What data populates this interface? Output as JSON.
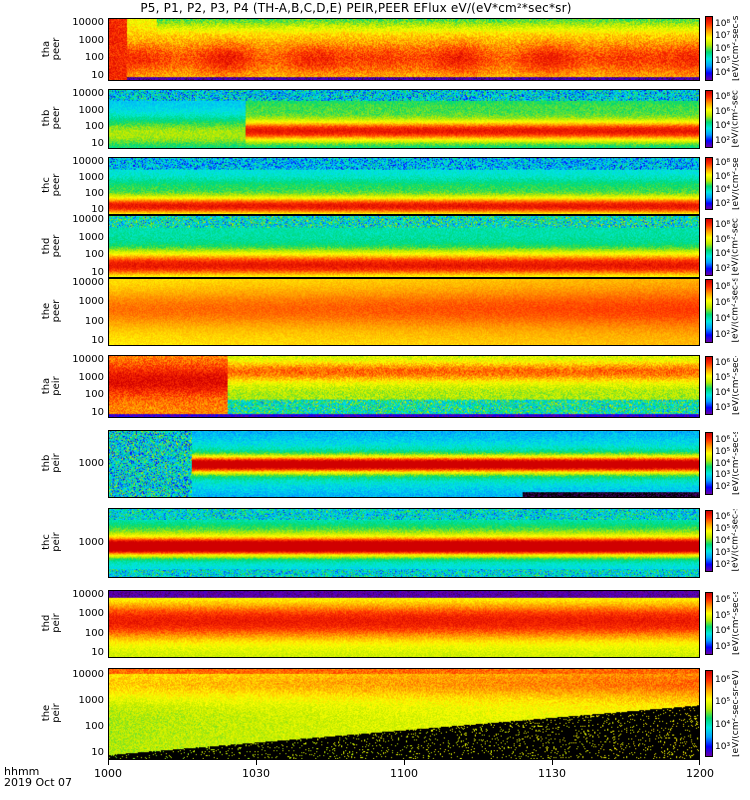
{
  "title": "P5, P1, P2, P3, P4 (TH-A,B,C,D,E) PEIR,PEER EFlux eV/(eV*cm²*sec*sr)",
  "x_axis": {
    "label": "hhmm",
    "date": "2019 Oct 07",
    "ticks": [
      "1000",
      "1030",
      "1100",
      "1130",
      "1200"
    ]
  },
  "colorbar_label": "[eV/(cm²-sec-sr-eV)] (4)",
  "colors": {
    "spectrum": [
      "#000000",
      "#6a00a8",
      "#0000ff",
      "#00a0ff",
      "#00e8e0",
      "#00d870",
      "#b8e800",
      "#ffff00",
      "#ffa000",
      "#ff3000",
      "#d00000"
    ]
  },
  "chart_data": [
    {
      "type": "heatmap",
      "ylabel": "tha\npeer",
      "yticks": [
        "10",
        "100",
        "1000",
        "10000"
      ],
      "colorbar_ticks": [
        "10⁴",
        "10⁵",
        "10⁶",
        "10⁷",
        "10⁸"
      ],
      "x_range": [
        "1000",
        "1200"
      ],
      "y_scale": "log",
      "colorscale": "log"
    },
    {
      "type": "heatmap",
      "ylabel": "thb\npeer",
      "yticks": [
        "10",
        "100",
        "1000",
        "10000"
      ],
      "colorbar_ticks": [
        "10²",
        "10⁴",
        "10⁶",
        "10⁸"
      ],
      "x_range": [
        "1000",
        "1200"
      ],
      "y_scale": "log",
      "colorscale": "log"
    },
    {
      "type": "heatmap",
      "ylabel": "thc\npeer",
      "yticks": [
        "10",
        "100",
        "1000",
        "10000"
      ],
      "colorbar_ticks": [
        "10²",
        "10⁴",
        "10⁶",
        "10⁸"
      ],
      "x_range": [
        "1000",
        "1200"
      ],
      "y_scale": "log",
      "colorscale": "log"
    },
    {
      "type": "heatmap",
      "ylabel": "thd\npeer",
      "yticks": [
        "10",
        "100",
        "1000",
        "10000"
      ],
      "colorbar_ticks": [
        "10²",
        "10⁴",
        "10⁶",
        "10⁸"
      ],
      "x_range": [
        "1000",
        "1200"
      ],
      "y_scale": "log",
      "colorscale": "log"
    },
    {
      "type": "heatmap",
      "ylabel": "the\npeer",
      "yticks": [
        "10",
        "100",
        "1000",
        "10000"
      ],
      "colorbar_ticks": [
        "10²",
        "10⁴",
        "10⁶",
        "10⁸"
      ],
      "x_range": [
        "1000",
        "1200"
      ],
      "y_scale": "log",
      "colorscale": "log"
    },
    {
      "type": "heatmap",
      "ylabel": "tha\npeir",
      "yticks": [
        "10",
        "100",
        "1000",
        "10000"
      ],
      "colorbar_ticks": [
        "10³",
        "10⁴",
        "10⁵",
        "10⁶"
      ],
      "x_range": [
        "1000",
        "1200"
      ],
      "y_scale": "log",
      "colorscale": "log"
    },
    {
      "type": "heatmap",
      "ylabel": "thb\npeir",
      "yticks": [
        "1000"
      ],
      "colorbar_ticks": [
        "10²",
        "10³",
        "10⁴",
        "10⁵",
        "10⁶"
      ],
      "x_range": [
        "1000",
        "1200"
      ],
      "y_scale": "log",
      "colorscale": "log"
    },
    {
      "type": "heatmap",
      "ylabel": "thc\npeir",
      "yticks": [
        "1000"
      ],
      "colorbar_ticks": [
        "10²",
        "10³",
        "10⁴",
        "10⁵",
        "10⁶"
      ],
      "x_range": [
        "1000",
        "1200"
      ],
      "y_scale": "log",
      "colorscale": "log"
    },
    {
      "type": "heatmap",
      "ylabel": "thd\npeir",
      "yticks": [
        "10",
        "100",
        "1000",
        "10000"
      ],
      "colorbar_ticks": [
        "10³",
        "10⁴",
        "10⁵",
        "10⁶"
      ],
      "x_range": [
        "1000",
        "1200"
      ],
      "y_scale": "log",
      "colorscale": "log"
    },
    {
      "type": "heatmap",
      "ylabel": "the\npeir",
      "yticks": [
        "10",
        "100",
        "1000",
        "10000"
      ],
      "colorbar_ticks": [
        "10³",
        "10⁴",
        "10⁵",
        "10⁶"
      ],
      "x_range": [
        "1000",
        "1200"
      ],
      "y_scale": "log",
      "colorscale": "log"
    }
  ]
}
